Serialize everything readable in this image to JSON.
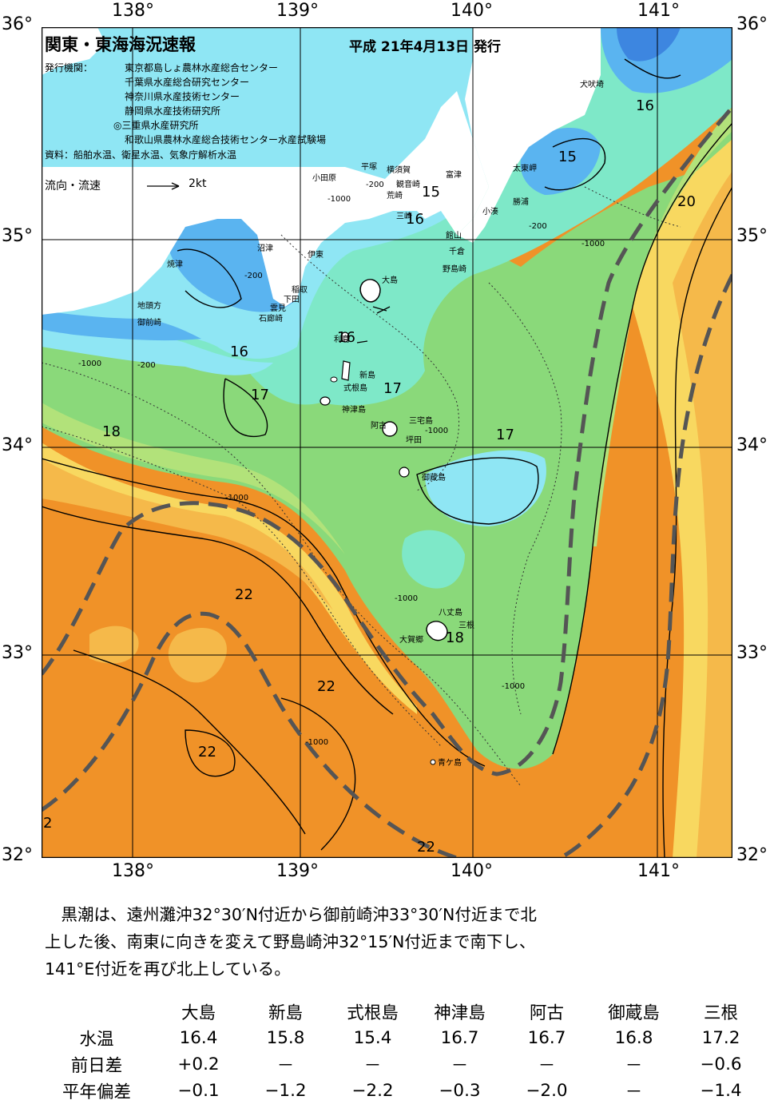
{
  "map": {
    "title": "関東・東海海況速報",
    "issued": "平成 21年4月13日 発行",
    "agencies_label": "発行機関：",
    "agencies": [
      "東京都島しょ農林水産総合センター",
      "千葉県水産総合研究センター",
      "神奈川県水産技術センター",
      "静岡県水産技術研究所",
      "◎三重県水産研究所",
      "和歌山県農林水産総合技術センター水産試験場"
    ],
    "sources": "資料：船舶水温、衛星水温、気象庁解析水温",
    "flow_label": "流向・流速",
    "flow_scale": "2kt",
    "lon_labels": [
      "138°",
      "139°",
      "140°",
      "141°"
    ],
    "lat_labels": [
      "36°",
      "35°",
      "34°",
      "33°",
      "32°"
    ],
    "places": [
      "犬吠埼",
      "太東岬",
      "勝浦",
      "小湊",
      "富津",
      "館山",
      "千倉",
      "野島崎",
      "横須賀",
      "観音崎",
      "荒崎",
      "三崎",
      "平塚",
      "小田原",
      "伊東",
      "稲取",
      "下田",
      "石廊崎",
      "雲見",
      "沼津",
      "焼津",
      "地頭方",
      "御前崎",
      "大島",
      "利島",
      "新島",
      "式根島",
      "神津島",
      "三宅島",
      "阿古",
      "坪田",
      "御蔵島",
      "八丈島",
      "三根",
      "大賀郷",
      "青ケ島"
    ],
    "isotherms": [
      "16",
      "15",
      "15",
      "16",
      "20",
      "16",
      "16",
      "17",
      "17",
      "17",
      "18",
      "22",
      "22",
      "22",
      "22",
      "18",
      "2"
    ],
    "depth_labels": [
      "-200",
      "-1000"
    ]
  },
  "text": {
    "lines": [
      "　黒潮は、遠州灘沖32°30′N付近から御前崎沖33°30′N付近まで北",
      "上した後、南東に向きを変えて野島崎沖32°15′N付近まで南下し、",
      "141°E付近を再び北上している。"
    ]
  },
  "table": {
    "headers": [
      "大島",
      "新島",
      "式根島",
      "神津島",
      "阿古",
      "御蔵島",
      "三根"
    ],
    "rows": [
      {
        "label": "水温",
        "values": [
          "16.4",
          "15.8",
          "15.4",
          "16.7",
          "16.7",
          "16.8",
          "17.2"
        ]
      },
      {
        "label": "前日差",
        "values": [
          "+0.2",
          "－",
          "－",
          "－",
          "－",
          "－",
          "−0.6"
        ]
      },
      {
        "label": "平年偏差",
        "values": [
          "−0.1",
          "−1.2",
          "−2.2",
          "−0.3",
          "−2.0",
          "－",
          "−1.4"
        ]
      }
    ]
  },
  "colors": {
    "water_cold_dark": "#3d86e0",
    "water_cold": "#5ab4f0",
    "water_cyan": "#8fe6f4",
    "water_aqua": "#7ee8c8",
    "water_green": "#8ad97a",
    "water_lightgreen": "#b2e27a",
    "water_yellow": "#f8d860",
    "water_lightorange": "#f5b94a",
    "water_orange": "#f09228",
    "water_darkorange": "#ee8019",
    "land": "#ffffff",
    "kuroshio_axis": "#555555"
  }
}
